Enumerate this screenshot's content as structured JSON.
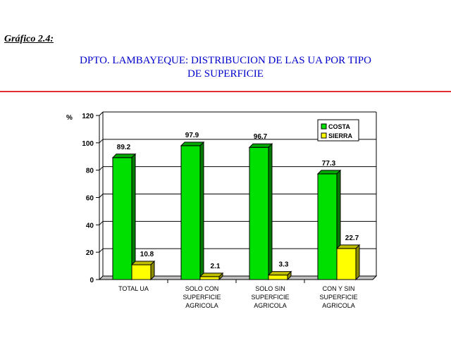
{
  "figure_label": "Gráfico 2.4:",
  "title_line1": "DPTO. LAMBAYEQUE: DISTRIBUCION DE LAS UA POR TIPO",
  "title_line2": "DE SUPERFICIE",
  "chart_data": {
    "type": "bar",
    "title": "DPTO. LAMBAYEQUE: DISTRIBUCION DE LAS UA POR TIPO DE SUPERFICIE",
    "ylabel": "%",
    "xlabel": "",
    "ylim": [
      0,
      120
    ],
    "yticks": [
      "0",
      "20",
      "40",
      "60",
      "80",
      "100",
      "120"
    ],
    "categories": [
      [
        "TOTAL UA"
      ],
      [
        "SOLO CON",
        "SUPERFICIE",
        "AGRICOLA"
      ],
      [
        "SOLO SIN",
        "SUPERFICIE",
        "AGRICOLA"
      ],
      [
        "CON Y SIN",
        "SUPERFICIE",
        "AGRICOLA"
      ]
    ],
    "series": [
      {
        "name": "COSTA",
        "color": "#00e000",
        "values": [
          89.2,
          97.9,
          96.7,
          77.3
        ],
        "labels": [
          "89.2",
          "97.9",
          "96.7",
          "77.3"
        ]
      },
      {
        "name": "SIERRA",
        "color": "#ffff00",
        "values": [
          10.8,
          2.1,
          3.3,
          22.7
        ],
        "labels": [
          "10.8",
          "2.1",
          "3.3",
          "22.7"
        ]
      }
    ],
    "grid": true,
    "legend_position": "top-right"
  }
}
